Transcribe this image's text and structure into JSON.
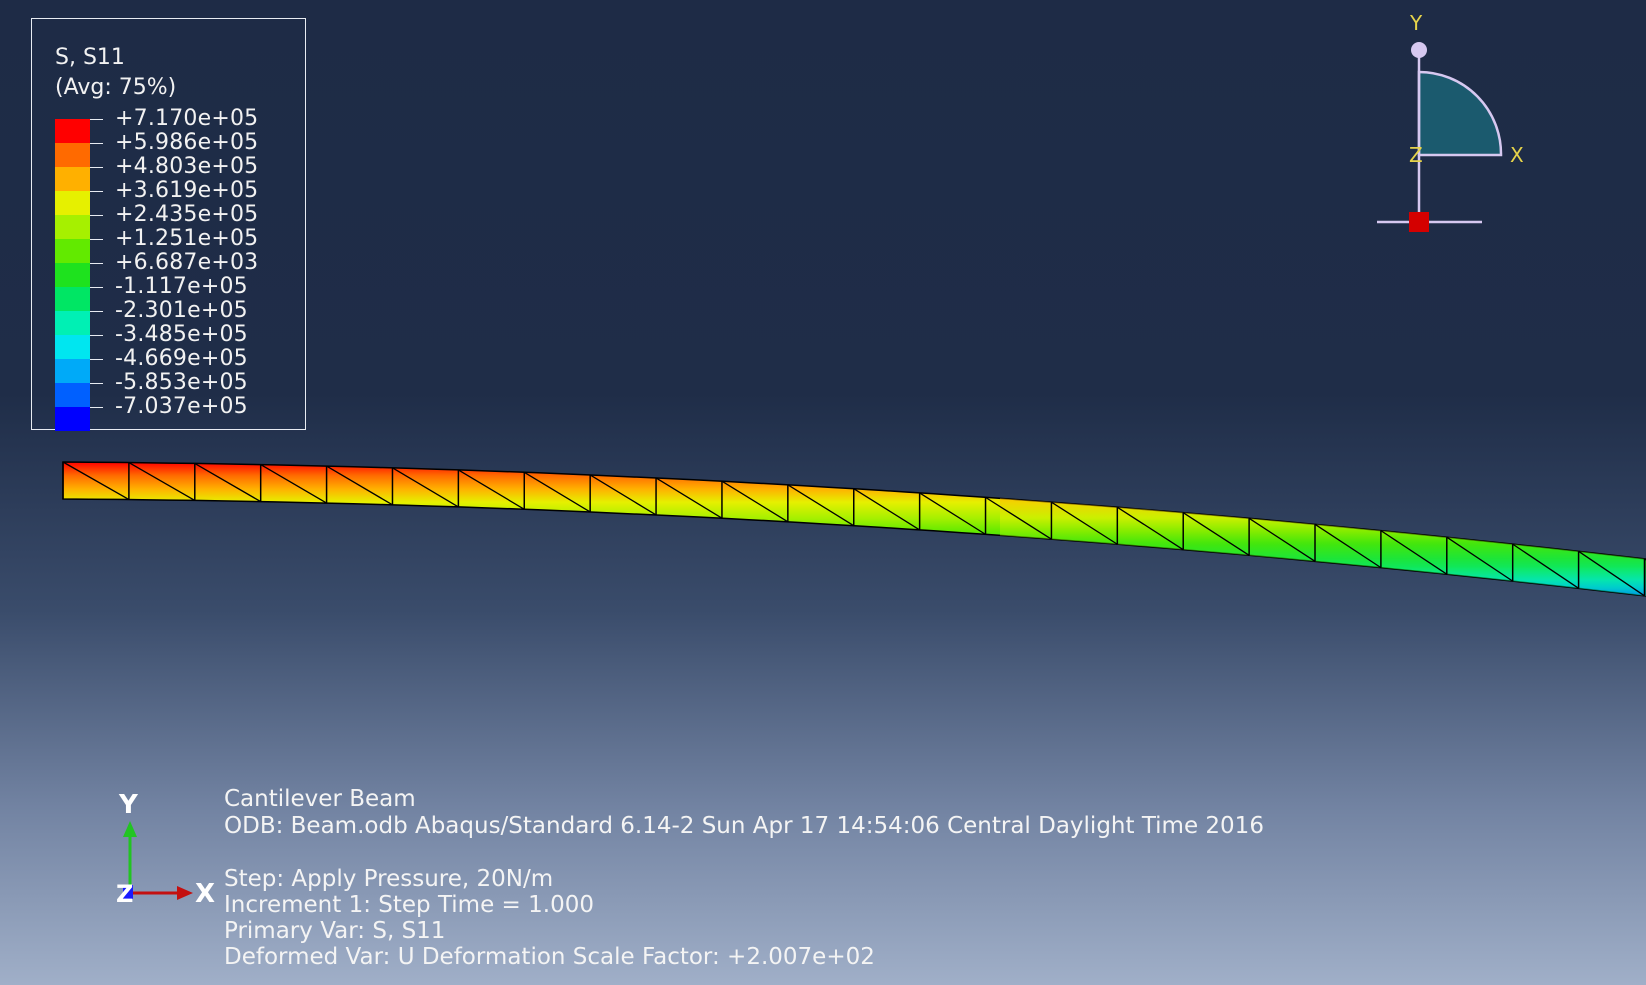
{
  "legend": {
    "title": "S, S11",
    "subtitle": "(Avg: 75%)",
    "levels": [
      {
        "label": "+7.170e+05",
        "color": "#ff0000"
      },
      {
        "label": "+5.986e+05",
        "color": "#ff6a00"
      },
      {
        "label": "+4.803e+05",
        "color": "#ffb000"
      },
      {
        "label": "+3.619e+05",
        "color": "#e6f000"
      },
      {
        "label": "+2.435e+05",
        "color": "#a6f000"
      },
      {
        "label": "+1.251e+05",
        "color": "#62ea00"
      },
      {
        "label": "+6.687e+03",
        "color": "#1ee21e"
      },
      {
        "label": "-1.117e+05",
        "color": "#00e664"
      },
      {
        "label": "-2.301e+05",
        "color": "#00f0b4"
      },
      {
        "label": "-3.485e+05",
        "color": "#00e6f0"
      },
      {
        "label": "-4.669e+05",
        "color": "#00aaf8"
      },
      {
        "label": "-5.853e+05",
        "color": "#0060ff"
      },
      {
        "label": "-7.037e+05",
        "color": "#0000ff"
      }
    ]
  },
  "triad": {
    "y_label": "Y",
    "x_label": "X",
    "z_label": "Z",
    "quadrant_color": "#1b5a6e",
    "frame_color": "#d6c8f0",
    "marker_color": "#d40000"
  },
  "global_axes": {
    "y_label": "Y",
    "x_label": "X",
    "z_label": "Z",
    "y_color": "#22c422",
    "x_color": "#c41010",
    "z_color": "#1a1aff"
  },
  "info": {
    "model_title": "Cantilever Beam",
    "odb_line": "ODB: Beam.odb     Abaqus/Standard 6.14-2     Sun Apr 17 14:54:06 Central Daylight Time 2016",
    "step_line": "Step: Apply Pressure, 20N/m",
    "increment_line": "Increment      1: Step Time =    1.000",
    "primary_var_line": "Primary Var: S, S11",
    "deformed_var_line": "Deformed Var: U   Deformation Scale Factor: +2.007e+02"
  },
  "beam": {
    "element_count": 24
  }
}
